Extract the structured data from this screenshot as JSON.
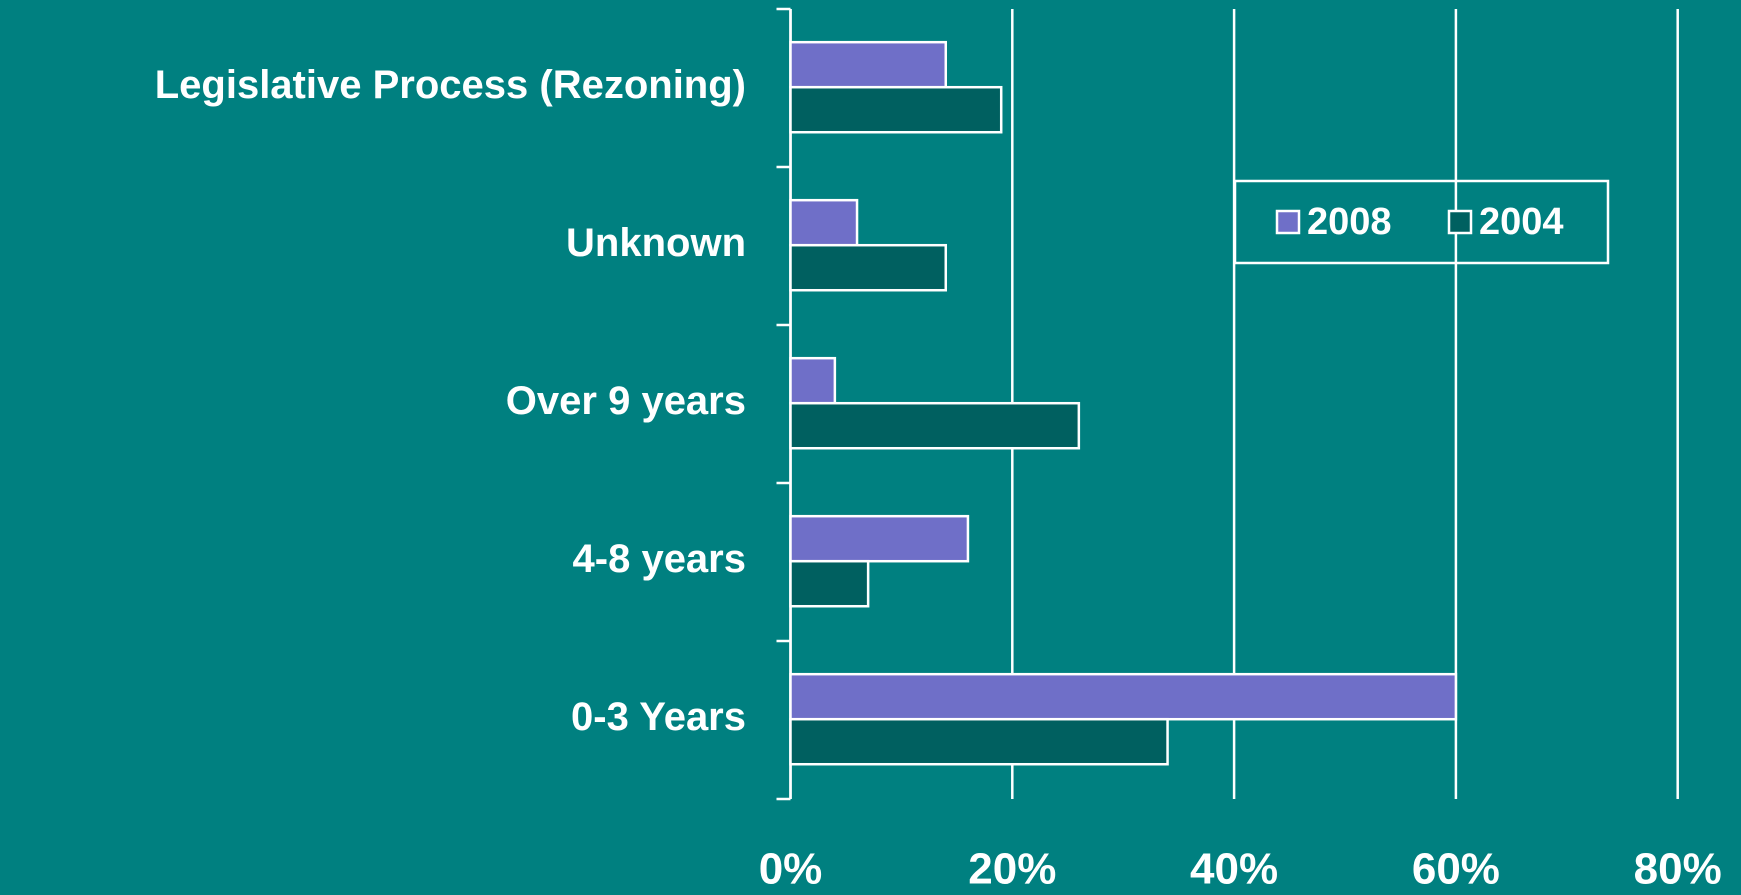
{
  "chart_data": {
    "type": "barh",
    "categories": [
      "Legislative Process (Rezoning)",
      "Unknown",
      "Over 9 years",
      "4-8 years",
      "0-3 Years"
    ],
    "series": [
      {
        "name": "2008",
        "color": "#6f6fc8",
        "values": [
          14,
          6,
          4,
          16,
          60
        ]
      },
      {
        "name": "2004",
        "color": "#006060",
        "values": [
          19,
          14,
          26,
          7,
          34
        ]
      }
    ],
    "xlim": [
      0,
      80
    ],
    "xticks": [
      {
        "value": 0,
        "label": "0%"
      },
      {
        "value": 20,
        "label": "20%"
      },
      {
        "value": 40,
        "label": "40%"
      },
      {
        "value": 60,
        "label": "60%"
      },
      {
        "value": 80,
        "label": "80%"
      }
    ],
    "grid": true,
    "legend": "upper right"
  }
}
